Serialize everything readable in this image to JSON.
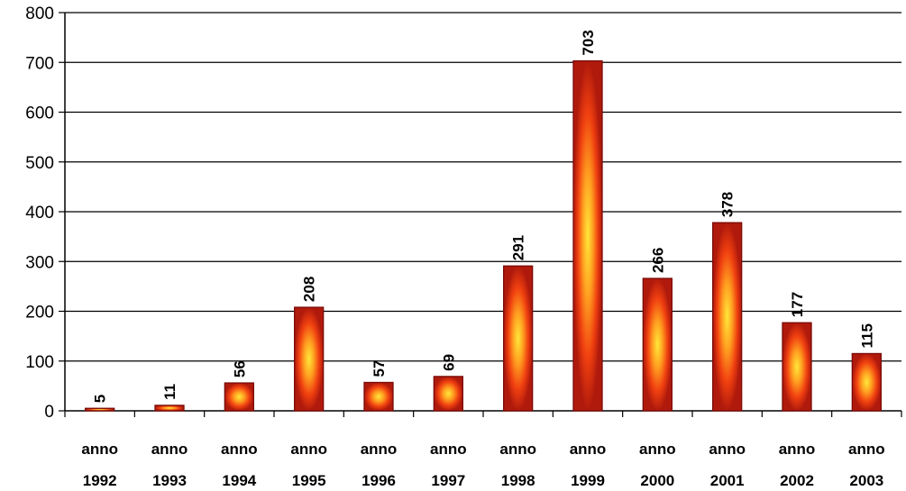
{
  "chart_data": {
    "type": "bar",
    "categories": [
      [
        "anno",
        "1992"
      ],
      [
        "anno",
        "1993"
      ],
      [
        "anno",
        "1994"
      ],
      [
        "anno",
        "1995"
      ],
      [
        "anno",
        "1996"
      ],
      [
        "anno",
        "1997"
      ],
      [
        "anno",
        "1998"
      ],
      [
        "anno",
        "1999"
      ],
      [
        "anno",
        "2000"
      ],
      [
        "anno",
        "2001"
      ],
      [
        "anno",
        "2002"
      ],
      [
        "anno",
        "2003"
      ]
    ],
    "values": [
      5,
      11,
      56,
      208,
      57,
      69,
      291,
      703,
      266,
      378,
      177,
      115
    ],
    "data_labels": [
      "5",
      "11",
      "56",
      "208",
      "57",
      "69",
      "291",
      "703",
      "266",
      "378",
      "177",
      "115"
    ],
    "y_ticks": [
      "0",
      "100",
      "200",
      "300",
      "400",
      "500",
      "600",
      "700",
      "800"
    ],
    "ylim": [
      0,
      800
    ],
    "grid": true,
    "legend": "none",
    "title": "",
    "xlabel": "",
    "ylabel": "",
    "colors": {
      "bar_center": "#ffe83a",
      "bar_mid": "#ff6a10",
      "bar_outer": "#d42a10",
      "bar_edge": "#7a0a08",
      "gridline": "#000000"
    }
  }
}
